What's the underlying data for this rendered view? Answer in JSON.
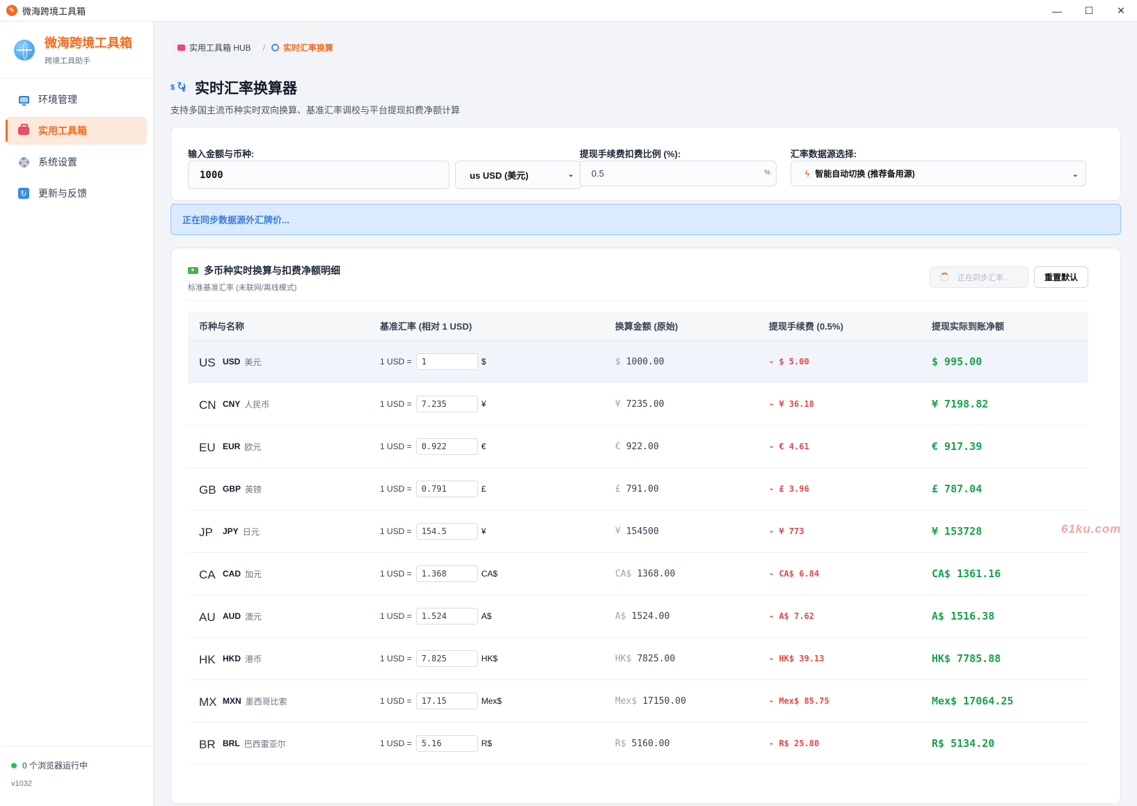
{
  "window": {
    "title": "微海跨境工具箱"
  },
  "sidebar": {
    "brand_name": "微海跨境工具箱",
    "brand_sub": "跨境工具助手",
    "items": [
      {
        "label": "环境管理",
        "icon": "monitor-icon"
      },
      {
        "label": "实用工具箱",
        "icon": "toolbox-icon",
        "active": true
      },
      {
        "label": "系统设置",
        "icon": "gear-icon"
      },
      {
        "label": "更新与反馈",
        "icon": "refresh-icon"
      }
    ],
    "status": "0 个浏览器运行中",
    "version": "v1032"
  },
  "breadcrumb": {
    "hub": "实用工具箱 HUB",
    "sep": "/",
    "current": "实时汇率换算"
  },
  "page": {
    "title": "实时汇率换算器",
    "subtitle": "支持多国主流币种实时双向换算、基准汇率调校与平台提现扣费净额计算"
  },
  "inputs": {
    "amount_label": "输入金额与币种:",
    "amount_value": "1000",
    "currency_value": "us USD (美元)",
    "fee_label": "提现手续费扣费比例 (%):",
    "fee_value": "0.5",
    "fee_unit": "%",
    "source_label": "汇率数据源选择:",
    "source_value": "智能自动切换 (推荐备用源)"
  },
  "sync_banner": "正在同步数据源外汇牌价...",
  "table": {
    "title": "多币种实时换算与扣费净额明细",
    "subtitle": "标准基准汇率 (未联网/离线模式)",
    "sync_button": "正在同步汇率...",
    "reset_button": "重置默认",
    "headers": [
      "币种与名称",
      "基准汇率 (相对 1 USD)",
      "换算金额 (原始)",
      "提现手续费 (0.5%)",
      "提现实际到账净额"
    ],
    "rate_prefix": "1 USD =",
    "rows": [
      {
        "flag": "US",
        "code": "USD",
        "name": "美元",
        "rate": "1",
        "symbol": "$",
        "converted": "1000.00",
        "fee": "- $ 5.00",
        "net": "$ 995.00"
      },
      {
        "flag": "CN",
        "code": "CNY",
        "name": "人民币",
        "rate": "7.235",
        "symbol": "¥",
        "converted": "7235.00",
        "fee": "- ¥ 36.18",
        "net": "¥ 7198.82"
      },
      {
        "flag": "EU",
        "code": "EUR",
        "name": "欧元",
        "rate": "0.922",
        "symbol": "€",
        "converted": "922.00",
        "fee": "- € 4.61",
        "net": "€ 917.39"
      },
      {
        "flag": "GB",
        "code": "GBP",
        "name": "英镑",
        "rate": "0.791",
        "symbol": "£",
        "converted": "791.00",
        "fee": "- £ 3.96",
        "net": "£ 787.04"
      },
      {
        "flag": "JP",
        "code": "JPY",
        "name": "日元",
        "rate": "154.5",
        "symbol": "¥",
        "converted": "154500",
        "fee": "- ¥ 773",
        "net": "¥ 153728"
      },
      {
        "flag": "CA",
        "code": "CAD",
        "name": "加元",
        "rate": "1.368",
        "symbol": "CA$",
        "converted": "1368.00",
        "fee": "- CA$ 6.84",
        "net": "CA$ 1361.16"
      },
      {
        "flag": "AU",
        "code": "AUD",
        "name": "澳元",
        "rate": "1.524",
        "symbol": "A$",
        "converted": "1524.00",
        "fee": "- A$ 7.62",
        "net": "A$ 1516.38"
      },
      {
        "flag": "HK",
        "code": "HKD",
        "name": "港币",
        "rate": "7.825",
        "symbol": "HK$",
        "converted": "7825.00",
        "fee": "- HK$ 39.13",
        "net": "HK$ 7785.88"
      },
      {
        "flag": "MX",
        "code": "MXN",
        "name": "墨西哥比索",
        "rate": "17.15",
        "symbol": "Mex$",
        "converted": "17150.00",
        "fee": "- Mex$ 85.75",
        "net": "Mex$ 17064.25"
      },
      {
        "flag": "BR",
        "code": "BRL",
        "name": "巴西雷亚尔",
        "rate": "5.16",
        "symbol": "R$",
        "converted": "5160.00",
        "fee": "- R$ 25.80",
        "net": "R$ 5134.20"
      }
    ]
  },
  "watermark": "61ku.com"
}
